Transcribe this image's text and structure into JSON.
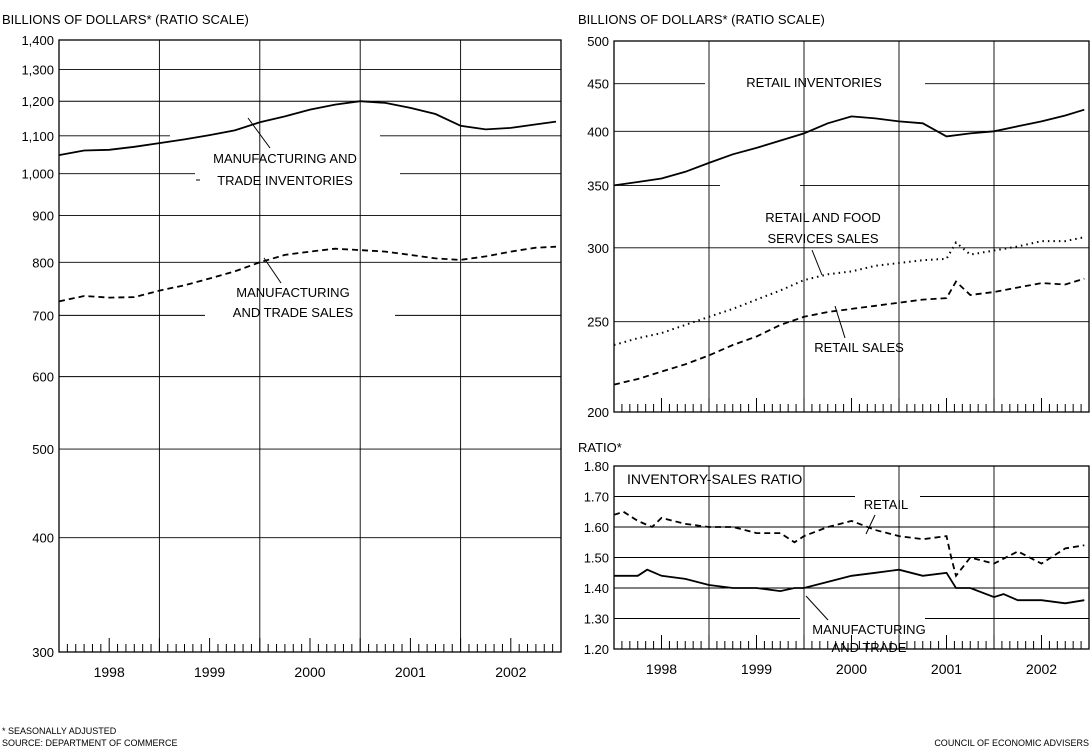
{
  "chart_data": [
    {
      "id": "mt",
      "type": "line",
      "title": "BILLIONS OF DOLLARS* (RATIO SCALE)",
      "scale": "log",
      "ylim": [
        300,
        1400
      ],
      "yticks": [
        300,
        400,
        500,
        600,
        700,
        800,
        900,
        1000,
        1100,
        1200,
        1300,
        1400
      ],
      "ytick_labels": [
        "300",
        "400",
        "500",
        "600",
        "700",
        "800",
        "900",
        "1,000",
        "1,100",
        "1,200",
        "1,300",
        "1,400"
      ],
      "xlim": [
        1998.0,
        2003.0
      ],
      "year_labels": [
        "1998",
        "1999",
        "2000",
        "2001",
        "2002"
      ],
      "series": [
        {
          "id": "mt-inv",
          "name": "MANUFACTURING AND TRADE INVENTORIES",
          "name_lines": [
            "MANUFACTURING AND",
            "TRADE INVENTORIES"
          ],
          "style": "solid",
          "x": [
            1998.0,
            1998.25,
            1998.5,
            1998.75,
            1999.0,
            1999.25,
            1999.5,
            1999.75,
            2000.0,
            2000.25,
            2000.5,
            2000.75,
            2001.0,
            2001.25,
            2001.5,
            2001.75,
            2002.0,
            2002.25,
            2002.5,
            2002.75,
            2002.95
          ],
          "y": [
            1048,
            1060,
            1062,
            1070,
            1080,
            1090,
            1102,
            1115,
            1138,
            1155,
            1175,
            1190,
            1200,
            1195,
            1180,
            1162,
            1128,
            1118,
            1122,
            1132,
            1140
          ]
        },
        {
          "id": "mt-sales",
          "name": "MANUFACTURING AND TRADE SALES",
          "name_lines": [
            "MANUFACTURING",
            "AND TRADE SALES"
          ],
          "style": "dash",
          "x": [
            1998.0,
            1998.25,
            1998.5,
            1998.75,
            1999.0,
            1999.25,
            1999.5,
            1999.75,
            2000.0,
            2000.25,
            2000.5,
            2000.75,
            2001.0,
            2001.25,
            2001.5,
            2001.75,
            2002.0,
            2002.25,
            2002.5,
            2002.75,
            2002.95
          ],
          "y": [
            725,
            735,
            732,
            733,
            745,
            755,
            768,
            782,
            800,
            815,
            822,
            828,
            825,
            822,
            815,
            808,
            805,
            812,
            822,
            830,
            832
          ]
        }
      ]
    },
    {
      "id": "rt",
      "type": "line",
      "title": "BILLIONS OF DOLLARS* (RATIO SCALE)",
      "scale": "log",
      "ylim": [
        200,
        500
      ],
      "yticks": [
        200,
        250,
        300,
        350,
        400,
        450,
        500
      ],
      "ytick_labels": [
        "200",
        "250",
        "300",
        "350",
        "400",
        "450",
        "500"
      ],
      "xlim": [
        1998.0,
        2003.0
      ],
      "series": [
        {
          "id": "rt-inv",
          "name": "RETAIL INVENTORIES",
          "style": "solid",
          "x": [
            1998.0,
            1998.25,
            1998.5,
            1998.75,
            1999.0,
            1999.25,
            1999.5,
            1999.75,
            2000.0,
            2000.25,
            2000.5,
            2000.75,
            2001.0,
            2001.25,
            2001.5,
            2001.75,
            2002.0,
            2002.25,
            2002.5,
            2002.75,
            2002.95
          ],
          "y": [
            350,
            353,
            356,
            362,
            370,
            378,
            384,
            391,
            398,
            408,
            415,
            413,
            410,
            408,
            395,
            398,
            400,
            405,
            410,
            416,
            422
          ]
        },
        {
          "id": "rt-food",
          "name": "RETAIL AND FOOD SERVICES SALES",
          "name_lines": [
            "RETAIL AND FOOD",
            "SERVICES SALES"
          ],
          "style": "dotted",
          "x": [
            1998.0,
            1998.25,
            1998.5,
            1998.75,
            1999.0,
            1999.25,
            1999.5,
            1999.75,
            2000.0,
            2000.25,
            2000.5,
            2000.75,
            2001.0,
            2001.25,
            2001.5,
            2001.6,
            2001.75,
            2002.0,
            2002.25,
            2002.5,
            2002.75,
            2002.95
          ],
          "y": [
            236,
            240,
            243,
            248,
            253,
            258,
            264,
            270,
            277,
            281,
            283,
            287,
            289,
            291,
            292,
            304,
            295,
            298,
            301,
            305,
            305,
            308
          ]
        },
        {
          "id": "rt-sales",
          "name": "RETAIL SALES",
          "style": "dash",
          "x": [
            1998.0,
            1998.25,
            1998.5,
            1998.75,
            1999.0,
            1999.25,
            1999.5,
            1999.75,
            2000.0,
            2000.25,
            2000.5,
            2000.75,
            2001.0,
            2001.25,
            2001.5,
            2001.6,
            2001.75,
            2002.0,
            2002.25,
            2002.5,
            2002.75,
            2002.95
          ],
          "y": [
            214,
            217,
            221,
            225,
            230,
            236,
            241,
            248,
            253,
            256,
            258,
            260,
            262,
            264,
            265,
            276,
            267,
            269,
            272,
            275,
            274,
            278
          ]
        }
      ]
    },
    {
      "id": "ratio",
      "type": "line",
      "title": "RATIO*",
      "panel_title": "INVENTORY-SALES RATIO",
      "scale": "linear",
      "ylim": [
        1.2,
        1.8
      ],
      "yticks": [
        1.2,
        1.3,
        1.4,
        1.5,
        1.6,
        1.7,
        1.8
      ],
      "ytick_labels": [
        "1.20",
        "1.30",
        "1.40",
        "1.50",
        "1.60",
        "1.70",
        "1.80"
      ],
      "xlim": [
        1998.0,
        2003.0
      ],
      "year_labels": [
        "1998",
        "1999",
        "2000",
        "2001",
        "2002"
      ],
      "series": [
        {
          "id": "ratio-retail",
          "name": "RETAIL",
          "style": "dash",
          "x": [
            1998.0,
            1998.1,
            1998.25,
            1998.4,
            1998.5,
            1998.75,
            1999.0,
            1999.25,
            1999.5,
            1999.75,
            1999.9,
            2000.0,
            2000.25,
            2000.5,
            2000.75,
            2001.0,
            2001.25,
            2001.5,
            2001.55,
            2001.6,
            2001.75,
            2002.0,
            2002.25,
            2002.5,
            2002.75,
            2002.95
          ],
          "y": [
            1.64,
            1.65,
            1.62,
            1.6,
            1.63,
            1.61,
            1.6,
            1.6,
            1.58,
            1.58,
            1.55,
            1.57,
            1.6,
            1.62,
            1.59,
            1.57,
            1.56,
            1.57,
            1.5,
            1.44,
            1.5,
            1.48,
            1.52,
            1.48,
            1.53,
            1.54
          ]
        },
        {
          "id": "ratio-mt",
          "name": "MANUFACTURING AND TRADE",
          "name_lines": [
            "MANUFACTURING",
            "AND TRADE"
          ],
          "style": "solid",
          "x": [
            1998.0,
            1998.25,
            1998.35,
            1998.5,
            1998.75,
            1999.0,
            1999.25,
            1999.5,
            1999.75,
            1999.9,
            2000.0,
            2000.25,
            2000.5,
            2000.75,
            2001.0,
            2001.25,
            2001.5,
            2001.6,
            2001.75,
            2002.0,
            2002.1,
            2002.25,
            2002.5,
            2002.75,
            2002.95
          ],
          "y": [
            1.44,
            1.44,
            1.46,
            1.44,
            1.43,
            1.41,
            1.4,
            1.4,
            1.39,
            1.4,
            1.4,
            1.42,
            1.44,
            1.45,
            1.46,
            1.44,
            1.45,
            1.4,
            1.4,
            1.37,
            1.38,
            1.36,
            1.36,
            1.35,
            1.36
          ]
        }
      ]
    }
  ],
  "footnote": "* SEASONALLY ADJUSTED",
  "source": "SOURCE: DEPARTMENT OF COMMERCE",
  "credit": "COUNCIL OF ECONOMIC ADVISERS"
}
